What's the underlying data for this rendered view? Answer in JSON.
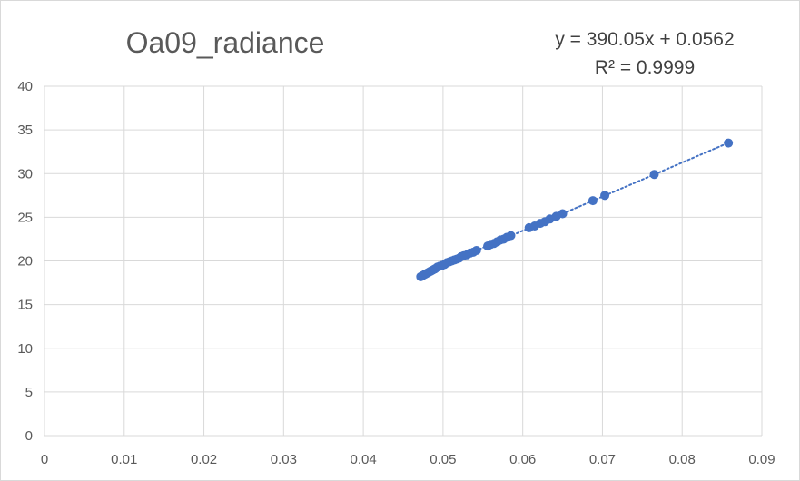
{
  "chart_data": {
    "type": "scatter",
    "title": "Oa09_radiance",
    "xlabel": "",
    "ylabel": "",
    "xlim": [
      0,
      0.09
    ],
    "ylim": [
      0,
      40
    ],
    "x_ticks": [
      "0",
      "0.01",
      "0.02",
      "0.03",
      "0.04",
      "0.05",
      "0.06",
      "0.07",
      "0.08",
      "0.09"
    ],
    "y_ticks": [
      "0",
      "5",
      "10",
      "15",
      "20",
      "25",
      "30",
      "35",
      "40"
    ],
    "grid": true,
    "legend": "none",
    "trendline": {
      "type": "linear",
      "style": "dotted",
      "slope": 390.05,
      "intercept": 0.0562,
      "equation": "y = 390.05x + 0.0562",
      "r_squared": "R² = 0.9999"
    },
    "series": [
      {
        "color": "#4472C4",
        "points": [
          [
            0.0472,
            18.2
          ],
          [
            0.0474,
            18.3
          ],
          [
            0.0476,
            18.4
          ],
          [
            0.0478,
            18.5
          ],
          [
            0.048,
            18.6
          ],
          [
            0.0482,
            18.7
          ],
          [
            0.0484,
            18.8
          ],
          [
            0.0486,
            18.9
          ],
          [
            0.0488,
            19.0
          ],
          [
            0.049,
            19.1
          ],
          [
            0.0493,
            19.3
          ],
          [
            0.0496,
            19.4
          ],
          [
            0.0499,
            19.5
          ],
          [
            0.0502,
            19.6
          ],
          [
            0.0505,
            19.8
          ],
          [
            0.0508,
            19.9
          ],
          [
            0.0511,
            20.0
          ],
          [
            0.0514,
            20.1
          ],
          [
            0.0517,
            20.2
          ],
          [
            0.052,
            20.3
          ],
          [
            0.0523,
            20.5
          ],
          [
            0.0526,
            20.6
          ],
          [
            0.053,
            20.7
          ],
          [
            0.0534,
            20.9
          ],
          [
            0.0538,
            21.0
          ],
          [
            0.0542,
            21.2
          ],
          [
            0.0556,
            21.7
          ],
          [
            0.056,
            21.9
          ],
          [
            0.0564,
            22.0
          ],
          [
            0.0568,
            22.2
          ],
          [
            0.0572,
            22.4
          ],
          [
            0.0576,
            22.5
          ],
          [
            0.058,
            22.7
          ],
          [
            0.0585,
            22.9
          ],
          [
            0.0608,
            23.8
          ],
          [
            0.0615,
            24.0
          ],
          [
            0.0622,
            24.3
          ],
          [
            0.0628,
            24.5
          ],
          [
            0.0634,
            24.8
          ],
          [
            0.0642,
            25.1
          ],
          [
            0.065,
            25.4
          ],
          [
            0.0688,
            26.9
          ],
          [
            0.0703,
            27.5
          ],
          [
            0.0765,
            29.9
          ],
          [
            0.0858,
            33.5
          ]
        ]
      }
    ]
  }
}
